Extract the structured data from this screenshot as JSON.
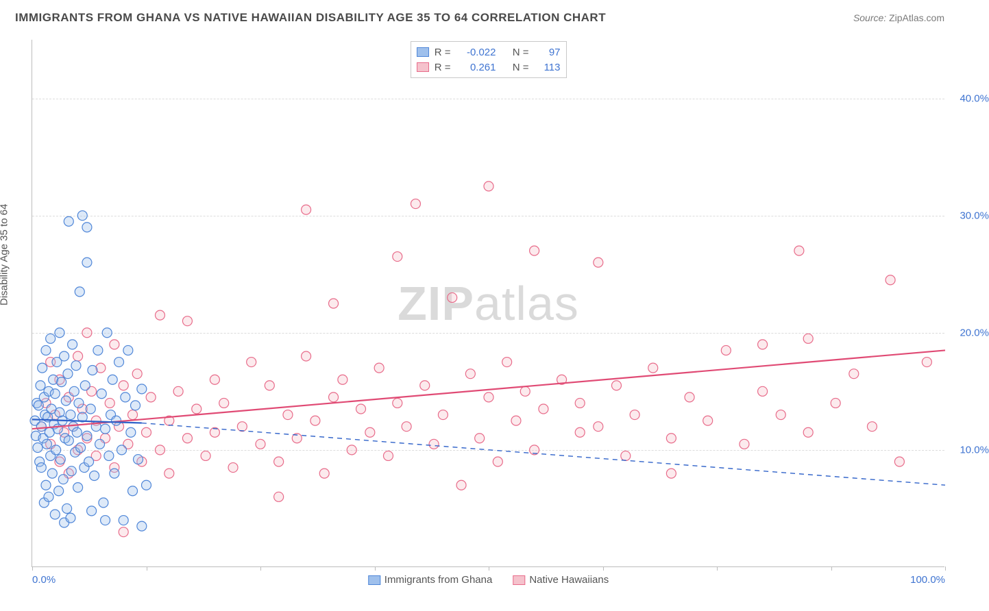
{
  "title": "IMMIGRANTS FROM GHANA VS NATIVE HAWAIIAN DISABILITY AGE 35 TO 64 CORRELATION CHART",
  "source_label": "Source:",
  "source_value": "ZipAtlas.com",
  "ylabel": "Disability Age 35 to 64",
  "watermark_bold": "ZIP",
  "watermark_light": "atlas",
  "chart": {
    "type": "scatter",
    "background_color": "#ffffff",
    "grid_color": "#dcdcdc",
    "axis_color": "#bcbcbc",
    "tick_label_color": "#3f74d1",
    "xlim": [
      0,
      100
    ],
    "ylim": [
      0,
      45
    ],
    "x_ticks": [
      0,
      12.5,
      25,
      37.5,
      50,
      62.5,
      75,
      87.5,
      100
    ],
    "x_tick_labels": {
      "0": "0.0%",
      "100": "100.0%"
    },
    "y_grid": [
      10,
      20,
      30,
      40
    ],
    "y_grid_labels": [
      "10.0%",
      "20.0%",
      "30.0%",
      "40.0%"
    ],
    "marker_radius": 7,
    "marker_stroke_width": 1.2,
    "marker_fill_opacity": 0.35,
    "line_width": 2.2,
    "series": [
      {
        "name": "Immigrants from Ghana",
        "color_fill": "#9fc0ec",
        "color_stroke": "#4f86d8",
        "line_color": "#2f62c9",
        "R": "-0.022",
        "N": "97",
        "trend": {
          "x1": 0,
          "y1": 12.6,
          "x2": 12,
          "y2": 12.3,
          "dash_x2": 100,
          "dash_y2": 7.0
        },
        "points": [
          [
            0.3,
            12.5
          ],
          [
            0.4,
            11.2
          ],
          [
            0.5,
            14.0
          ],
          [
            0.6,
            10.2
          ],
          [
            0.7,
            13.8
          ],
          [
            0.8,
            9.0
          ],
          [
            0.9,
            15.5
          ],
          [
            1.0,
            12.0
          ],
          [
            1.0,
            8.5
          ],
          [
            1.1,
            17.0
          ],
          [
            1.2,
            11.0
          ],
          [
            1.3,
            5.5
          ],
          [
            1.3,
            14.5
          ],
          [
            1.4,
            13.0
          ],
          [
            1.5,
            7.0
          ],
          [
            1.5,
            18.5
          ],
          [
            1.6,
            10.5
          ],
          [
            1.7,
            12.8
          ],
          [
            1.8,
            15.0
          ],
          [
            1.8,
            6.0
          ],
          [
            1.9,
            11.5
          ],
          [
            2.0,
            9.5
          ],
          [
            2.0,
            19.5
          ],
          [
            2.1,
            13.5
          ],
          [
            2.2,
            8.0
          ],
          [
            2.3,
            16.0
          ],
          [
            2.4,
            12.2
          ],
          [
            2.5,
            4.5
          ],
          [
            2.5,
            14.8
          ],
          [
            2.6,
            10.0
          ],
          [
            2.7,
            17.5
          ],
          [
            2.8,
            11.8
          ],
          [
            2.9,
            6.5
          ],
          [
            3.0,
            13.2
          ],
          [
            3.0,
            20.0
          ],
          [
            3.1,
            9.2
          ],
          [
            3.2,
            15.8
          ],
          [
            3.3,
            12.5
          ],
          [
            3.4,
            7.5
          ],
          [
            3.5,
            18.0
          ],
          [
            3.6,
            11.0
          ],
          [
            3.7,
            14.2
          ],
          [
            3.8,
            5.0
          ],
          [
            3.9,
            16.5
          ],
          [
            4.0,
            10.8
          ],
          [
            4.0,
            29.5
          ],
          [
            4.2,
            13.0
          ],
          [
            4.3,
            8.2
          ],
          [
            4.4,
            19.0
          ],
          [
            4.5,
            12.0
          ],
          [
            4.6,
            15.0
          ],
          [
            4.7,
            9.8
          ],
          [
            4.8,
            17.2
          ],
          [
            4.9,
            11.5
          ],
          [
            5.0,
            6.8
          ],
          [
            5.1,
            14.0
          ],
          [
            5.2,
            23.5
          ],
          [
            5.3,
            10.2
          ],
          [
            5.5,
            30.0
          ],
          [
            5.5,
            12.8
          ],
          [
            5.7,
            8.5
          ],
          [
            5.8,
            15.5
          ],
          [
            6.0,
            11.2
          ],
          [
            6.0,
            26.0
          ],
          [
            6.0,
            29.0
          ],
          [
            6.2,
            9.0
          ],
          [
            6.4,
            13.5
          ],
          [
            6.6,
            16.8
          ],
          [
            6.8,
            7.8
          ],
          [
            7.0,
            12.0
          ],
          [
            7.2,
            18.5
          ],
          [
            7.4,
            10.5
          ],
          [
            7.6,
            14.8
          ],
          [
            7.8,
            5.5
          ],
          [
            8.0,
            11.8
          ],
          [
            8.2,
            20.0
          ],
          [
            8.4,
            9.5
          ],
          [
            8.6,
            13.0
          ],
          [
            8.8,
            16.0
          ],
          [
            9.0,
            8.0
          ],
          [
            9.2,
            12.5
          ],
          [
            9.5,
            17.5
          ],
          [
            9.8,
            10.0
          ],
          [
            10.0,
            4.0
          ],
          [
            10.2,
            14.5
          ],
          [
            10.5,
            18.5
          ],
          [
            10.8,
            11.5
          ],
          [
            11.0,
            6.5
          ],
          [
            11.3,
            13.8
          ],
          [
            11.6,
            9.2
          ],
          [
            12.0,
            15.2
          ],
          [
            12.0,
            3.5
          ],
          [
            12.5,
            7.0
          ],
          [
            3.5,
            3.8
          ],
          [
            4.2,
            4.2
          ],
          [
            6.5,
            4.8
          ],
          [
            8.0,
            4.0
          ]
        ]
      },
      {
        "name": "Native Hawaiians",
        "color_fill": "#f5c2cc",
        "color_stroke": "#e86b8a",
        "line_color": "#e04a74",
        "R": "0.261",
        "N": "113",
        "trend": {
          "x1": 0,
          "y1": 11.8,
          "x2": 100,
          "y2": 18.5
        },
        "points": [
          [
            1.0,
            12.0
          ],
          [
            1.5,
            14.0
          ],
          [
            2.0,
            10.5
          ],
          [
            2.0,
            17.5
          ],
          [
            2.5,
            13.0
          ],
          [
            3.0,
            9.0
          ],
          [
            3.0,
            16.0
          ],
          [
            3.5,
            11.5
          ],
          [
            4.0,
            14.5
          ],
          [
            4.0,
            8.0
          ],
          [
            4.5,
            12.0
          ],
          [
            5.0,
            18.0
          ],
          [
            5.0,
            10.0
          ],
          [
            5.5,
            13.5
          ],
          [
            6.0,
            11.0
          ],
          [
            6.0,
            20.0
          ],
          [
            6.5,
            15.0
          ],
          [
            7.0,
            9.5
          ],
          [
            7.0,
            12.5
          ],
          [
            7.5,
            17.0
          ],
          [
            8.0,
            11.0
          ],
          [
            8.5,
            14.0
          ],
          [
            9.0,
            8.5
          ],
          [
            9.0,
            19.0
          ],
          [
            9.5,
            12.0
          ],
          [
            10.0,
            15.5
          ],
          [
            10.0,
            3.0
          ],
          [
            10.5,
            10.5
          ],
          [
            11.0,
            13.0
          ],
          [
            11.5,
            16.5
          ],
          [
            12.0,
            9.0
          ],
          [
            12.5,
            11.5
          ],
          [
            13.0,
            14.5
          ],
          [
            14.0,
            10.0
          ],
          [
            14.0,
            21.5
          ],
          [
            15.0,
            12.5
          ],
          [
            15.0,
            8.0
          ],
          [
            16.0,
            15.0
          ],
          [
            17.0,
            11.0
          ],
          [
            17.0,
            21.0
          ],
          [
            18.0,
            13.5
          ],
          [
            19.0,
            9.5
          ],
          [
            20.0,
            16.0
          ],
          [
            20.0,
            11.5
          ],
          [
            21.0,
            14.0
          ],
          [
            22.0,
            8.5
          ],
          [
            23.0,
            12.0
          ],
          [
            24.0,
            17.5
          ],
          [
            25.0,
            10.5
          ],
          [
            26.0,
            15.5
          ],
          [
            27.0,
            9.0
          ],
          [
            27.0,
            6.0
          ],
          [
            28.0,
            13.0
          ],
          [
            29.0,
            11.0
          ],
          [
            30.0,
            18.0
          ],
          [
            30.0,
            30.5
          ],
          [
            31.0,
            12.5
          ],
          [
            32.0,
            8.0
          ],
          [
            33.0,
            14.5
          ],
          [
            33.0,
            22.5
          ],
          [
            34.0,
            16.0
          ],
          [
            35.0,
            10.0
          ],
          [
            36.0,
            13.5
          ],
          [
            37.0,
            11.5
          ],
          [
            38.0,
            17.0
          ],
          [
            39.0,
            9.5
          ],
          [
            40.0,
            14.0
          ],
          [
            40.0,
            26.5
          ],
          [
            41.0,
            12.0
          ],
          [
            42.0,
            31.0
          ],
          [
            43.0,
            15.5
          ],
          [
            44.0,
            10.5
          ],
          [
            45.0,
            13.0
          ],
          [
            46.0,
            23.0
          ],
          [
            47.0,
            7.0
          ],
          [
            48.0,
            16.5
          ],
          [
            49.0,
            11.0
          ],
          [
            50.0,
            14.5
          ],
          [
            50.0,
            32.5
          ],
          [
            51.0,
            9.0
          ],
          [
            52.0,
            17.5
          ],
          [
            53.0,
            12.5
          ],
          [
            54.0,
            15.0
          ],
          [
            55.0,
            10.0
          ],
          [
            55.0,
            27.0
          ],
          [
            56.0,
            13.5
          ],
          [
            58.0,
            16.0
          ],
          [
            60.0,
            11.5
          ],
          [
            60.0,
            14.0
          ],
          [
            62.0,
            12.0
          ],
          [
            62.0,
            26.0
          ],
          [
            64.0,
            15.5
          ],
          [
            65.0,
            9.5
          ],
          [
            66.0,
            13.0
          ],
          [
            68.0,
            17.0
          ],
          [
            70.0,
            11.0
          ],
          [
            70.0,
            8.0
          ],
          [
            72.0,
            14.5
          ],
          [
            74.0,
            12.5
          ],
          [
            76.0,
            18.5
          ],
          [
            78.0,
            10.5
          ],
          [
            80.0,
            15.0
          ],
          [
            80.0,
            19.0
          ],
          [
            82.0,
            13.0
          ],
          [
            84.0,
            27.0
          ],
          [
            85.0,
            11.5
          ],
          [
            85.0,
            19.5
          ],
          [
            88.0,
            14.0
          ],
          [
            90.0,
            16.5
          ],
          [
            92.0,
            12.0
          ],
          [
            94.0,
            24.5
          ],
          [
            95.0,
            9.0
          ],
          [
            98.0,
            17.5
          ]
        ]
      }
    ],
    "stats_legend": {
      "R_label": "R =",
      "N_label": "N ="
    }
  }
}
